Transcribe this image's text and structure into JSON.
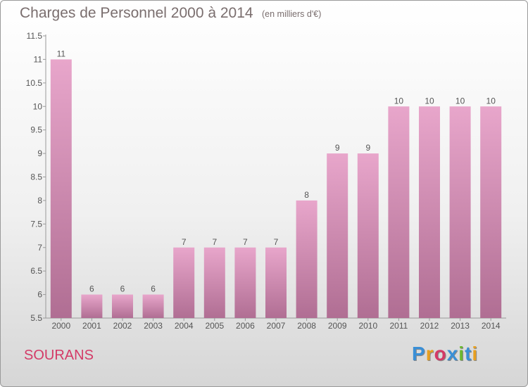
{
  "header": {
    "title": "Charges de Personnel 2000 à 2014",
    "subtitle": "(en milliers d'€)"
  },
  "footer": {
    "commune": "SOURANS",
    "logo": "Proxiti",
    "logo_colors": [
      "#3a8fd6",
      "#e8a020",
      "#d43a67",
      "#3a8fd6",
      "#6bb82e",
      "#3a8fd6",
      "#e8a020"
    ]
  },
  "chart_data": {
    "type": "bar",
    "categories": [
      "2000",
      "2001",
      "2002",
      "2003",
      "2004",
      "2005",
      "2006",
      "2007",
      "2008",
      "2009",
      "2010",
      "2011",
      "2012",
      "2013",
      "2014"
    ],
    "values": [
      11,
      6,
      6,
      6,
      7,
      7,
      7,
      7,
      8,
      9,
      9,
      10,
      10,
      10,
      10
    ],
    "data_labels": [
      "11",
      "6",
      "6",
      "6",
      "7",
      "7",
      "7",
      "7",
      "8",
      "9",
      "9",
      "10",
      "10",
      "10",
      "10"
    ],
    "yticks": [
      5.5,
      6,
      6.5,
      7,
      7.5,
      8,
      8.5,
      9,
      9.5,
      10,
      10.5,
      11,
      11.5
    ],
    "ytick_labels": [
      "5.5",
      "6",
      "6.5",
      "7",
      "7.5",
      "8",
      "8.5",
      "9",
      "9.5",
      "10",
      "10.5",
      "11",
      "11.5"
    ],
    "ylim": [
      5.5,
      11.5
    ],
    "grid": false,
    "legend": "none",
    "bar_color_top": "#e8a6cb",
    "bar_color_bottom": "#b06e93"
  }
}
